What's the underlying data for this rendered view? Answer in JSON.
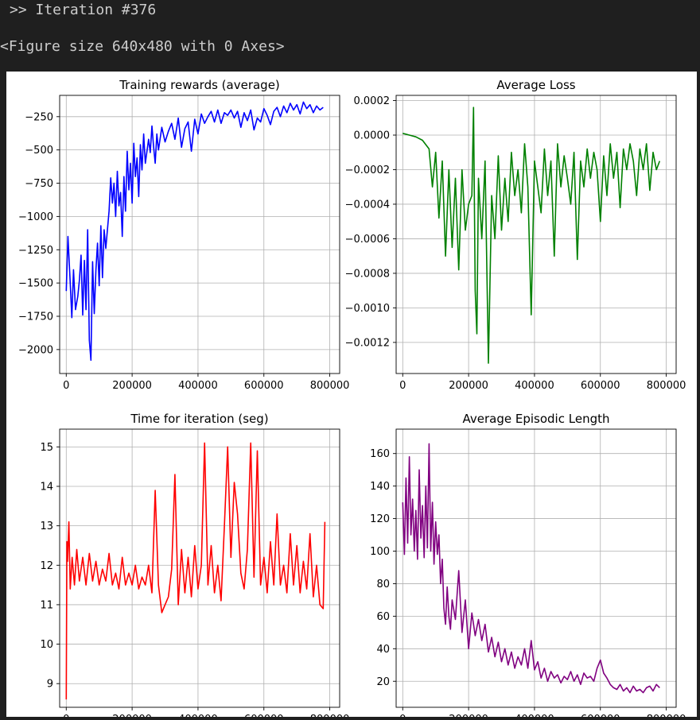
{
  "output": {
    "iteration_line": ">> Iteration #376",
    "figure_repr": "<Figure size 640x480 with 0 Axes>"
  },
  "chart_data": [
    {
      "type": "line",
      "title": "Training rewards (average)",
      "color": "#0000ff",
      "xlim": [
        -20000,
        830000
      ],
      "ylim": [
        -2180,
        -90
      ],
      "xticks": [
        0,
        200000,
        400000,
        600000,
        800000
      ],
      "yticks": [
        -2000,
        -1750,
        -1500,
        -1250,
        -1000,
        -750,
        -500,
        -250
      ],
      "grid": true,
      "series": [
        {
          "x": [
            0,
            5000,
            12000,
            17000,
            22000,
            28000,
            35000,
            40000,
            45000,
            50000,
            55000,
            60000,
            65000,
            70000,
            75000,
            80000,
            85000,
            90000,
            95000,
            100000,
            105000,
            110000,
            115000,
            120000,
            130000,
            135000,
            140000,
            145000,
            150000,
            155000,
            160000,
            165000,
            170000,
            175000,
            180000,
            185000,
            190000,
            195000,
            200000,
            205000,
            210000,
            215000,
            220000,
            225000,
            230000,
            235000,
            240000,
            250000,
            255000,
            260000,
            265000,
            270000,
            275000,
            280000,
            290000,
            300000,
            310000,
            320000,
            330000,
            340000,
            350000,
            360000,
            370000,
            380000,
            390000,
            400000,
            410000,
            420000,
            430000,
            440000,
            450000,
            460000,
            470000,
            480000,
            490000,
            500000,
            510000,
            520000,
            530000,
            540000,
            550000,
            560000,
            570000,
            580000,
            590000,
            600000,
            610000,
            620000,
            630000,
            640000,
            650000,
            660000,
            670000,
            680000,
            690000,
            700000,
            710000,
            720000,
            730000,
            740000,
            750000,
            760000,
            770000,
            780000
          ],
          "y": [
            -1560,
            -1150,
            -1500,
            -1760,
            -1400,
            -1700,
            -1600,
            -1480,
            -1290,
            -1740,
            -1330,
            -1700,
            -1100,
            -1930,
            -2080,
            -1340,
            -1730,
            -1400,
            -1200,
            -1520,
            -1070,
            -1460,
            -1100,
            -1240,
            -960,
            -710,
            -900,
            -750,
            -1000,
            -660,
            -920,
            -820,
            -1150,
            -700,
            -960,
            -510,
            -800,
            -600,
            -900,
            -450,
            -700,
            -560,
            -850,
            -460,
            -650,
            -380,
            -600,
            -420,
            -520,
            -320,
            -470,
            -600,
            -380,
            -500,
            -330,
            -440,
            -360,
            -300,
            -420,
            -260,
            -480,
            -340,
            -290,
            -510,
            -270,
            -380,
            -230,
            -300,
            -250,
            -210,
            -290,
            -200,
            -300,
            -220,
            -240,
            -200,
            -260,
            -210,
            -330,
            -220,
            -280,
            -200,
            -350,
            -260,
            -290,
            -190,
            -240,
            -310,
            -210,
            -180,
            -250,
            -170,
            -220,
            -150,
            -200,
            -160,
            -230,
            -140,
            -190,
            -160,
            -220,
            -170,
            -200,
            -180
          ]
        }
      ]
    },
    {
      "type": "line",
      "title": "Average Loss",
      "color": "#008000",
      "xlim": [
        -20000,
        830000
      ],
      "ylim": [
        -0.00138,
        0.00023
      ],
      "xticks": [
        0,
        200000,
        400000,
        600000,
        800000
      ],
      "yticks": [
        -0.0012,
        -0.001,
        -0.0008,
        -0.0006,
        -0.0004,
        -0.0002,
        0.0,
        0.0002
      ],
      "grid": true,
      "series": [
        {
          "x": [
            0,
            20000,
            40000,
            60000,
            80000,
            90000,
            100000,
            110000,
            120000,
            130000,
            140000,
            150000,
            160000,
            170000,
            180000,
            190000,
            200000,
            210000,
            215000,
            220000,
            225000,
            230000,
            240000,
            250000,
            260000,
            270000,
            280000,
            290000,
            300000,
            310000,
            320000,
            330000,
            340000,
            350000,
            360000,
            370000,
            380000,
            390000,
            400000,
            410000,
            420000,
            430000,
            440000,
            450000,
            460000,
            470000,
            480000,
            490000,
            500000,
            510000,
            520000,
            530000,
            540000,
            550000,
            560000,
            570000,
            580000,
            590000,
            600000,
            610000,
            620000,
            630000,
            640000,
            650000,
            660000,
            670000,
            680000,
            690000,
            700000,
            710000,
            720000,
            730000,
            740000,
            750000,
            760000,
            770000,
            780000
          ],
          "y": [
            1e-05,
            0.0,
            -1e-05,
            -3e-05,
            -8e-05,
            -0.0003,
            -0.0001,
            -0.00048,
            -0.00015,
            -0.0007,
            -0.0002,
            -0.00065,
            -0.00025,
            -0.00078,
            -0.0002,
            -0.00055,
            -0.0004,
            -0.00035,
            0.00016,
            -0.0009,
            -0.00115,
            -0.00025,
            -0.0006,
            -0.00015,
            -0.00132,
            -0.00035,
            -0.0006,
            -0.00012,
            -0.00055,
            -0.00025,
            -0.0005,
            -0.0001,
            -0.00035,
            -0.0002,
            -0.00045,
            -5e-05,
            -0.0003,
            -0.00104,
            -0.00015,
            -0.0003,
            -0.00045,
            -8e-05,
            -0.00035,
            -0.00015,
            -0.0007,
            -5e-05,
            -0.0003,
            -0.00012,
            -0.00025,
            -0.0004,
            -0.0001,
            -0.00072,
            -0.00015,
            -0.0003,
            -8e-05,
            -0.00025,
            -0.0001,
            -0.0002,
            -0.0005,
            -0.00012,
            -0.00035,
            -5e-05,
            -0.00025,
            -0.0001,
            -0.00042,
            -8e-05,
            -0.0002,
            -5e-05,
            -0.00015,
            -0.00035,
            -8e-05,
            -0.0002,
            -5e-05,
            -0.00032,
            -0.0001,
            -0.0002,
            -0.00015
          ]
        }
      ]
    },
    {
      "type": "line",
      "title": "Time for iteration (seg)",
      "color": "#ff0000",
      "xlim": [
        -20000,
        830000
      ],
      "ylim": [
        8.4,
        15.45
      ],
      "xticks": [
        0,
        200000,
        400000,
        600000,
        800000
      ],
      "yticks": [
        9,
        10,
        11,
        12,
        13,
        14,
        15
      ],
      "grid": true,
      "series": [
        {
          "x": [
            0,
            2000,
            4000,
            8000,
            12000,
            18000,
            25000,
            32000,
            40000,
            50000,
            60000,
            70000,
            80000,
            90000,
            100000,
            110000,
            120000,
            130000,
            140000,
            150000,
            160000,
            170000,
            180000,
            190000,
            200000,
            210000,
            220000,
            230000,
            240000,
            250000,
            260000,
            270000,
            280000,
            290000,
            300000,
            310000,
            320000,
            330000,
            340000,
            350000,
            360000,
            370000,
            380000,
            390000,
            400000,
            410000,
            420000,
            430000,
            440000,
            450000,
            460000,
            470000,
            480000,
            490000,
            500000,
            510000,
            520000,
            530000,
            540000,
            550000,
            560000,
            570000,
            580000,
            590000,
            600000,
            610000,
            620000,
            630000,
            640000,
            650000,
            660000,
            670000,
            680000,
            690000,
            700000,
            710000,
            720000,
            730000,
            740000,
            750000,
            760000,
            770000,
            780000,
            785000
          ],
          "y": [
            8.6,
            12.6,
            12.1,
            13.1,
            11.4,
            12.2,
            11.5,
            12.4,
            11.6,
            12.2,
            11.5,
            12.3,
            11.6,
            12.1,
            11.5,
            11.9,
            11.6,
            12.3,
            11.5,
            11.8,
            11.4,
            12.2,
            11.5,
            11.8,
            11.5,
            12.0,
            11.4,
            11.7,
            11.5,
            12.0,
            11.3,
            13.9,
            11.5,
            10.8,
            11.0,
            11.2,
            11.9,
            14.3,
            11.0,
            12.4,
            11.3,
            12.2,
            11.2,
            12.5,
            11.4,
            12.0,
            15.1,
            11.5,
            12.5,
            11.3,
            12.0,
            11.1,
            13.0,
            15.0,
            12.2,
            14.1,
            13.3,
            11.8,
            11.4,
            12.4,
            15.1,
            11.7,
            14.9,
            11.5,
            12.2,
            11.3,
            12.6,
            11.5,
            13.3,
            11.5,
            12.0,
            11.3,
            12.8,
            11.5,
            12.5,
            11.3,
            12.1,
            11.4,
            12.8,
            11.2,
            12.0,
            11.0,
            10.9,
            13.1
          ]
        }
      ]
    },
    {
      "type": "line",
      "title": "Average Episodic Length",
      "color": "#800080",
      "xlim": [
        -20000,
        830000
      ],
      "ylim": [
        4,
        175
      ],
      "xticks": [
        0,
        200000,
        400000,
        600000,
        800000
      ],
      "yticks": [
        20,
        40,
        60,
        80,
        100,
        120,
        140,
        160
      ],
      "grid": true,
      "series": [
        {
          "x": [
            0,
            5000,
            10000,
            15000,
            20000,
            25000,
            30000,
            35000,
            40000,
            45000,
            50000,
            55000,
            60000,
            65000,
            70000,
            75000,
            80000,
            85000,
            90000,
            95000,
            100000,
            105000,
            110000,
            115000,
            120000,
            125000,
            130000,
            135000,
            140000,
            145000,
            150000,
            160000,
            170000,
            180000,
            190000,
            200000,
            210000,
            220000,
            230000,
            240000,
            250000,
            260000,
            270000,
            280000,
            290000,
            300000,
            310000,
            320000,
            330000,
            340000,
            350000,
            360000,
            370000,
            380000,
            390000,
            400000,
            410000,
            420000,
            430000,
            440000,
            450000,
            460000,
            470000,
            480000,
            490000,
            500000,
            510000,
            520000,
            530000,
            540000,
            550000,
            560000,
            570000,
            580000,
            590000,
            600000,
            610000,
            620000,
            630000,
            640000,
            650000,
            660000,
            670000,
            680000,
            690000,
            700000,
            710000,
            720000,
            730000,
            740000,
            750000,
            760000,
            770000,
            780000
          ],
          "y": [
            130,
            98,
            145,
            105,
            158,
            110,
            132,
            100,
            125,
            95,
            150,
            108,
            128,
            96,
            140,
            102,
            166,
            100,
            130,
            92,
            118,
            98,
            110,
            80,
            95,
            65,
            55,
            78,
            60,
            52,
            70,
            58,
            88,
            50,
            70,
            40,
            62,
            48,
            58,
            45,
            55,
            38,
            47,
            35,
            44,
            32,
            40,
            30,
            38,
            28,
            35,
            30,
            40,
            28,
            45,
            27,
            32,
            22,
            28,
            20,
            26,
            22,
            24,
            19,
            23,
            21,
            26,
            20,
            24,
            18,
            25,
            22,
            23,
            20,
            28,
            33,
            25,
            22,
            18,
            16,
            15,
            18,
            14,
            16,
            13,
            17,
            14,
            15,
            13,
            16,
            17,
            14,
            18,
            16
          ]
        }
      ]
    }
  ]
}
